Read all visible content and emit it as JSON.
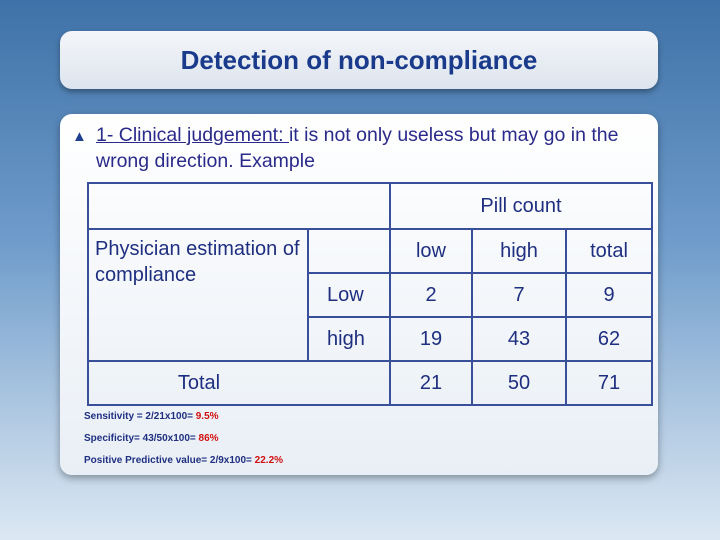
{
  "title": "Detection of non-compliance",
  "bullet": {
    "icon": "triangle-bullet-icon",
    "lead": "1- Clinical judgement: ",
    "rest": "it is not only useless but may go in the wrong direction.  Example"
  },
  "table": {
    "header": "Pill count",
    "row_header": "Physician estimation of compliance",
    "columns": [
      "low",
      "high",
      "total"
    ],
    "rows": [
      {
        "label": "Low",
        "values": [
          "2",
          "7",
          "9"
        ]
      },
      {
        "label": "high",
        "values": [
          "19",
          "43",
          "62"
        ]
      }
    ],
    "total_row": {
      "label": "Total",
      "values": [
        "21",
        "50",
        "71"
      ]
    }
  },
  "notes": [
    {
      "text": "Sensitivity = 2/21x100= ",
      "value": "9.5%"
    },
    {
      "text": "Specificity= 43/50x100= ",
      "value": "86%"
    },
    {
      "text": "Positive Predictive value= 2/9x100= ",
      "value": "22.2%"
    }
  ],
  "colors": {
    "title": "#1a3b8c",
    "text": "#1f2f80",
    "highlight": "#d01010"
  }
}
